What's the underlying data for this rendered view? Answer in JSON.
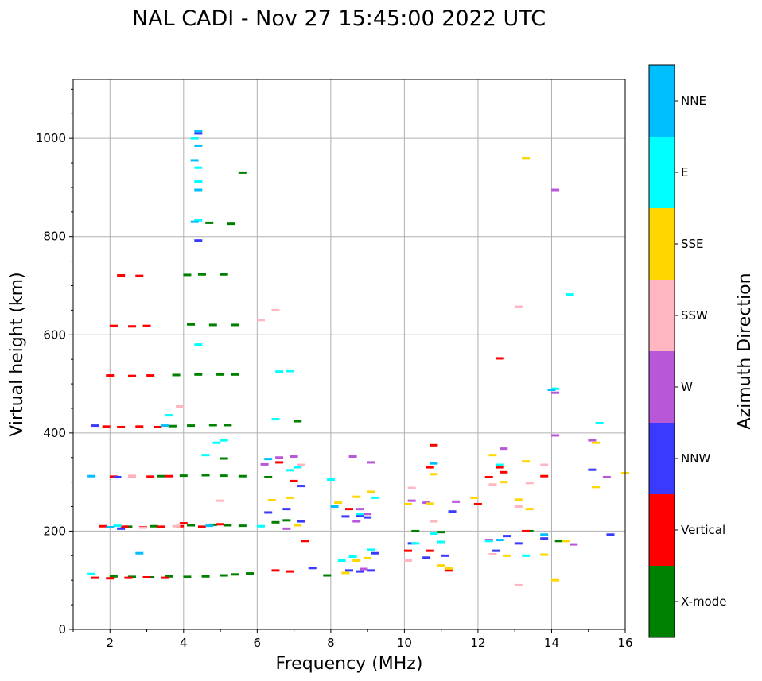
{
  "chart_data": {
    "type": "scatter",
    "title": "NAL CADI - Nov 27 15:45:00 2022 UTC",
    "xlabel": "Frequency (MHz)",
    "ylabel": "Virtual height (km)",
    "xlim": [
      1,
      16
    ],
    "ylim": [
      0,
      1120
    ],
    "xticks": [
      2,
      4,
      6,
      8,
      10,
      12,
      14,
      16
    ],
    "yticks": [
      0,
      200,
      400,
      600,
      800,
      1000
    ],
    "grid": true,
    "colorbar": {
      "title": "Azimuth Direction",
      "categories": [
        {
          "name": "X-mode",
          "color": "#008000"
        },
        {
          "name": "Vertical",
          "color": "#ff0000"
        },
        {
          "name": "NNW",
          "color": "#3a3aff"
        },
        {
          "name": "W",
          "color": "#b957d9"
        },
        {
          "name": "SSW",
          "color": "#ffb6c1"
        },
        {
          "name": "SSE",
          "color": "#ffd700"
        },
        {
          "name": "E",
          "color": "#00ffff"
        },
        {
          "name": "NNE",
          "color": "#00bfff"
        }
      ]
    },
    "series": [
      {
        "name": "X-mode",
        "points": [
          [
            2.1,
            108
          ],
          [
            2.6,
            107
          ],
          [
            3.1,
            106
          ],
          [
            3.6,
            108
          ],
          [
            4.1,
            107
          ],
          [
            4.6,
            108
          ],
          [
            5.1,
            110
          ],
          [
            5.4,
            112
          ],
          [
            5.8,
            114
          ],
          [
            2.5,
            209
          ],
          [
            3.2,
            210
          ],
          [
            4.2,
            212
          ],
          [
            4.8,
            213
          ],
          [
            5.2,
            212
          ],
          [
            5.6,
            211
          ],
          [
            3.4,
            312
          ],
          [
            4.0,
            313
          ],
          [
            4.6,
            314
          ],
          [
            5.1,
            313
          ],
          [
            5.6,
            312
          ],
          [
            3.7,
            414
          ],
          [
            4.2,
            415
          ],
          [
            4.8,
            416
          ],
          [
            5.2,
            416
          ],
          [
            3.8,
            518
          ],
          [
            4.4,
            519
          ],
          [
            5.0,
            519
          ],
          [
            5.4,
            519
          ],
          [
            4.2,
            621
          ],
          [
            4.8,
            620
          ],
          [
            5.4,
            620
          ],
          [
            4.1,
            722
          ],
          [
            4.5,
            723
          ],
          [
            5.1,
            723
          ],
          [
            4.7,
            828
          ],
          [
            5.3,
            826
          ],
          [
            5.6,
            930
          ],
          [
            7.1,
            424
          ],
          [
            7.9,
            110
          ],
          [
            10.3,
            200
          ],
          [
            11.0,
            198
          ],
          [
            13.4,
            200
          ],
          [
            14.2,
            180
          ],
          [
            6.5,
            218
          ],
          [
            6.8,
            222
          ],
          [
            6.3,
            310
          ],
          [
            5.1,
            348
          ]
        ]
      },
      {
        "name": "Vertical",
        "points": [
          [
            1.6,
            105
          ],
          [
            2.0,
            104
          ],
          [
            2.5,
            105
          ],
          [
            3.0,
            106
          ],
          [
            3.5,
            105
          ],
          [
            1.8,
            210
          ],
          [
            2.4,
            209
          ],
          [
            2.9,
            208
          ],
          [
            3.4,
            209
          ],
          [
            3.9,
            210
          ],
          [
            2.1,
            311
          ],
          [
            2.6,
            312
          ],
          [
            3.1,
            311
          ],
          [
            3.6,
            312
          ],
          [
            1.9,
            413
          ],
          [
            2.3,
            412
          ],
          [
            2.8,
            413
          ],
          [
            3.3,
            412
          ],
          [
            2.0,
            517
          ],
          [
            2.6,
            516
          ],
          [
            3.1,
            517
          ],
          [
            2.1,
            618
          ],
          [
            2.6,
            617
          ],
          [
            3.0,
            618
          ],
          [
            2.3,
            721
          ],
          [
            2.8,
            720
          ],
          [
            6.5,
            120
          ],
          [
            6.9,
            118
          ],
          [
            7.3,
            180
          ],
          [
            8.5,
            245
          ],
          [
            10.1,
            160
          ],
          [
            10.7,
            160
          ],
          [
            10.8,
            375
          ],
          [
            11.2,
            120
          ],
          [
            10.7,
            330
          ],
          [
            12.0,
            255
          ],
          [
            12.3,
            310
          ],
          [
            12.6,
            330
          ],
          [
            12.6,
            552
          ],
          [
            12.7,
            320
          ],
          [
            13.3,
            200
          ],
          [
            13.8,
            312
          ],
          [
            4.0,
            216
          ],
          [
            4.5,
            209
          ],
          [
            5.0,
            214
          ],
          [
            6.6,
            340
          ],
          [
            7.0,
            302
          ]
        ]
      },
      {
        "name": "NNW",
        "points": [
          [
            4.4,
            792
          ],
          [
            4.4,
            1010
          ],
          [
            2.2,
            310
          ],
          [
            1.6,
            415
          ],
          [
            6.8,
            245
          ],
          [
            7.2,
            220
          ],
          [
            7.5,
            125
          ],
          [
            8.4,
            230
          ],
          [
            8.8,
            232
          ],
          [
            9.0,
            228
          ],
          [
            8.5,
            120
          ],
          [
            8.8,
            118
          ],
          [
            9.1,
            120
          ],
          [
            9.2,
            155
          ],
          [
            10.2,
            175
          ],
          [
            10.6,
            146
          ],
          [
            11.1,
            150
          ],
          [
            11.3,
            240
          ],
          [
            12.5,
            160
          ],
          [
            12.8,
            190
          ],
          [
            13.1,
            175
          ],
          [
            13.8,
            185
          ],
          [
            15.1,
            325
          ],
          [
            15.6,
            193
          ],
          [
            2.3,
            205
          ],
          [
            6.3,
            238
          ],
          [
            7.2,
            292
          ]
        ]
      },
      {
        "name": "W",
        "points": [
          [
            7.0,
            352
          ],
          [
            6.6,
            350
          ],
          [
            8.6,
            352
          ],
          [
            9.1,
            340
          ],
          [
            8.8,
            245
          ],
          [
            9.0,
            235
          ],
          [
            8.7,
            220
          ],
          [
            8.9,
            123
          ],
          [
            10.2,
            262
          ],
          [
            10.6,
            258
          ],
          [
            11.4,
            260
          ],
          [
            12.7,
            368
          ],
          [
            14.1,
            895
          ],
          [
            14.1,
            482
          ],
          [
            14.1,
            395
          ],
          [
            15.1,
            385
          ],
          [
            15.5,
            310
          ],
          [
            12.3,
            182
          ],
          [
            14.6,
            173
          ],
          [
            6.8,
            205
          ],
          [
            6.2,
            336
          ]
        ]
      },
      {
        "name": "SSW",
        "points": [
          [
            6.5,
            650
          ],
          [
            6.1,
            630
          ],
          [
            3.9,
            454
          ],
          [
            2.6,
            312
          ],
          [
            2.9,
            207
          ],
          [
            3.8,
            210
          ],
          [
            13.1,
            657
          ],
          [
            10.2,
            288
          ],
          [
            10.8,
            220
          ],
          [
            12.4,
            295
          ],
          [
            13.4,
            298
          ],
          [
            13.1,
            250
          ],
          [
            12.4,
            153
          ],
          [
            13.1,
            90
          ],
          [
            10.1,
            140
          ],
          [
            13.8,
            335
          ],
          [
            5.0,
            262
          ],
          [
            7.2,
            335
          ]
        ]
      },
      {
        "name": "SSE",
        "points": [
          [
            6.4,
            263
          ],
          [
            6.9,
            268
          ],
          [
            7.1,
            212
          ],
          [
            8.2,
            258
          ],
          [
            8.7,
            270
          ],
          [
            9.1,
            280
          ],
          [
            8.4,
            115
          ],
          [
            8.7,
            140
          ],
          [
            9.0,
            145
          ],
          [
            10.1,
            255
          ],
          [
            10.7,
            256
          ],
          [
            10.8,
            316
          ],
          [
            11.0,
            130
          ],
          [
            11.2,
            124
          ],
          [
            11.9,
            268
          ],
          [
            12.4,
            355
          ],
          [
            12.8,
            150
          ],
          [
            13.1,
            264
          ],
          [
            13.3,
            960
          ],
          [
            13.3,
            342
          ],
          [
            13.8,
            152
          ],
          [
            14.1,
            100
          ],
          [
            15.2,
            290
          ],
          [
            15.2,
            380
          ],
          [
            16.0,
            318
          ],
          [
            13.4,
            245
          ],
          [
            14.4,
            180
          ],
          [
            12.7,
            300
          ]
        ]
      },
      {
        "name": "E",
        "points": [
          [
            4.4,
            580
          ],
          [
            4.3,
            1000
          ],
          [
            4.4,
            940
          ],
          [
            4.4,
            912
          ],
          [
            4.4,
            833
          ],
          [
            6.6,
            525
          ],
          [
            6.9,
            526
          ],
          [
            6.5,
            428
          ],
          [
            6.9,
            324
          ],
          [
            7.1,
            330
          ],
          [
            4.9,
            380
          ],
          [
            5.1,
            385
          ],
          [
            8.0,
            305
          ],
          [
            8.3,
            140
          ],
          [
            8.6,
            148
          ],
          [
            9.1,
            162
          ],
          [
            9.2,
            268
          ],
          [
            10.3,
            175
          ],
          [
            10.8,
            195
          ],
          [
            11.0,
            178
          ],
          [
            12.3,
            180
          ],
          [
            12.6,
            335
          ],
          [
            13.3,
            150
          ],
          [
            14.1,
            490
          ],
          [
            14.5,
            682
          ],
          [
            15.3,
            420
          ],
          [
            3.6,
            436
          ],
          [
            1.5,
            113
          ],
          [
            2.2,
            211
          ],
          [
            6.1,
            210
          ],
          [
            8.8,
            235
          ],
          [
            4.6,
            355
          ]
        ]
      },
      {
        "name": "NNE",
        "points": [
          [
            4.4,
            1015
          ],
          [
            4.4,
            985
          ],
          [
            4.3,
            955
          ],
          [
            4.4,
            895
          ],
          [
            4.3,
            830
          ],
          [
            3.5,
            415
          ],
          [
            1.5,
            312
          ],
          [
            8.1,
            250
          ],
          [
            6.3,
            347
          ],
          [
            10.8,
            338
          ],
          [
            12.6,
            182
          ],
          [
            13.8,
            193
          ],
          [
            14.0,
            488
          ],
          [
            2.8,
            155
          ],
          [
            2.0,
            208
          ],
          [
            4.7,
            211
          ]
        ]
      }
    ]
  }
}
